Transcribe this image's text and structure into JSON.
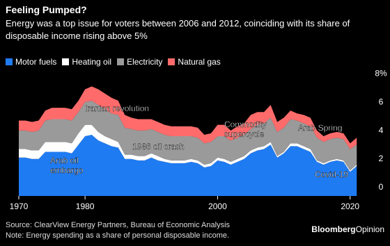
{
  "chart_data": {
    "type": "stacked_area",
    "title": "Feeling Pumped?",
    "subtitle": "Energy was a top issue for voters between 2006 and 2012, coinciding with its share of disposable income rising above 5%",
    "x": [
      1970,
      1971,
      1972,
      1973,
      1974,
      1975,
      1976,
      1977,
      1978,
      1979,
      1980,
      1981,
      1982,
      1983,
      1984,
      1985,
      1986,
      1987,
      1988,
      1989,
      1990,
      1991,
      1992,
      1993,
      1994,
      1995,
      1996,
      1997,
      1998,
      1999,
      2000,
      2001,
      2002,
      2003,
      2004,
      2005,
      2006,
      2007,
      2008,
      2009,
      2010,
      2011,
      2012,
      2013,
      2014,
      2015,
      2016,
      2017,
      2018,
      2019,
      2020,
      2021
    ],
    "series": [
      {
        "name": "Motor fuels",
        "color": "#1f7bf2",
        "values": [
          2.7,
          2.7,
          2.6,
          2.6,
          3.1,
          3.1,
          3.1,
          3.1,
          3.0,
          3.6,
          4.2,
          4.3,
          3.9,
          3.7,
          3.5,
          3.4,
          2.6,
          2.6,
          2.5,
          2.5,
          2.7,
          2.5,
          2.4,
          2.3,
          2.3,
          2.3,
          2.4,
          2.3,
          2.0,
          2.1,
          2.5,
          2.4,
          2.2,
          2.4,
          2.6,
          3.0,
          3.2,
          3.3,
          3.6,
          2.7,
          3.0,
          3.5,
          3.5,
          3.3,
          3.1,
          2.4,
          2.2,
          2.4,
          2.5,
          2.4,
          1.7,
          2.1
        ]
      },
      {
        "name": "Heating oil",
        "color": "#ffffff",
        "values": [
          0.6,
          0.6,
          0.6,
          0.6,
          0.7,
          0.7,
          0.7,
          0.7,
          0.7,
          0.8,
          0.8,
          0.7,
          0.6,
          0.5,
          0.5,
          0.4,
          0.3,
          0.3,
          0.3,
          0.3,
          0.3,
          0.3,
          0.2,
          0.2,
          0.2,
          0.2,
          0.2,
          0.2,
          0.2,
          0.2,
          0.2,
          0.2,
          0.2,
          0.2,
          0.2,
          0.2,
          0.2,
          0.2,
          0.2,
          0.1,
          0.1,
          0.2,
          0.2,
          0.2,
          0.2,
          0.1,
          0.1,
          0.1,
          0.1,
          0.1,
          0.1,
          0.1
        ]
      },
      {
        "name": "Electricity",
        "color": "#9a9a9a",
        "values": [
          1.3,
          1.3,
          1.3,
          1.4,
          1.5,
          1.6,
          1.6,
          1.6,
          1.6,
          1.5,
          1.6,
          1.7,
          1.9,
          1.9,
          1.8,
          1.9,
          1.9,
          1.8,
          1.8,
          1.8,
          1.7,
          1.7,
          1.7,
          1.7,
          1.7,
          1.7,
          1.6,
          1.6,
          1.5,
          1.5,
          1.5,
          1.6,
          1.5,
          1.5,
          1.5,
          1.5,
          1.6,
          1.6,
          1.7,
          1.7,
          1.7,
          1.7,
          1.6,
          1.6,
          1.6,
          1.6,
          1.5,
          1.5,
          1.5,
          1.5,
          1.5,
          1.4
        ]
      },
      {
        "name": "Natural gas",
        "color": "#ff6b6b",
        "values": [
          0.7,
          0.7,
          0.7,
          0.7,
          0.7,
          0.8,
          0.8,
          0.8,
          0.8,
          0.8,
          0.9,
          1.0,
          1.1,
          1.1,
          1.1,
          1.0,
          0.9,
          0.8,
          0.8,
          0.8,
          0.7,
          0.7,
          0.7,
          0.7,
          0.7,
          0.7,
          0.7,
          0.7,
          0.6,
          0.6,
          0.8,
          0.8,
          0.7,
          0.8,
          0.8,
          1.0,
          0.9,
          0.8,
          0.9,
          0.7,
          0.7,
          0.6,
          0.5,
          0.6,
          0.6,
          0.5,
          0.4,
          0.4,
          0.4,
          0.4,
          0.4,
          0.5
        ]
      }
    ],
    "xlim": [
      1970,
      2021.5
    ],
    "xticks": [
      1970,
      1980,
      2000,
      2020
    ],
    "ylim": [
      0,
      8.5
    ],
    "yticks": [
      0,
      2,
      4,
      6,
      {
        "value": 8,
        "label": "8%"
      }
    ],
    "annotations": [
      [
        "Iranian revolution"
      ],
      [
        "1986 oil crash"
      ],
      [
        "Arab oil",
        "embargo"
      ],
      [
        "Commodity",
        "supercycle"
      ],
      [
        "Arab Spring"
      ],
      [
        "Covid-19"
      ]
    ],
    "source": "Source: ClearView Energy Partners, Bureau of Economic Analysis",
    "note": "Note: Energy spending as a share of personal disposable income.",
    "brand": [
      "Bloomberg",
      "Opinion"
    ]
  }
}
